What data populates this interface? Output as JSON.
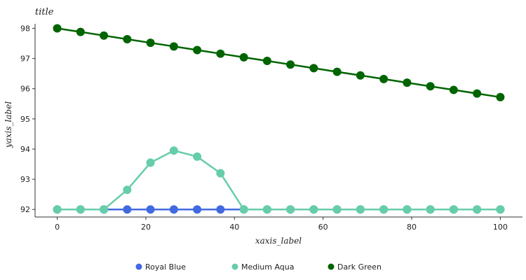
{
  "chart_data": {
    "type": "line",
    "title": "title",
    "xlabel": "xaxis_label",
    "ylabel": "yaxis_label",
    "xlim": [
      -5,
      105
    ],
    "ylim": [
      91.75,
      98.15
    ],
    "x_ticks": [
      0,
      20,
      40,
      60,
      80,
      100
    ],
    "y_ticks": [
      92,
      93,
      94,
      95,
      96,
      97,
      98
    ],
    "legend_position": "bottom",
    "grid": false,
    "legend": [
      {
        "name": "Royal Blue",
        "color": "#4169e1"
      },
      {
        "name": "Medium Aqua",
        "color": "#66cdaa"
      },
      {
        "name": "Dark Green",
        "color": "#006400"
      }
    ],
    "series": [
      {
        "name": "Royal Blue",
        "color": "#4169e1",
        "x": [
          0,
          5.26,
          10.53,
          15.79,
          21.05,
          26.32,
          31.58,
          36.84,
          42.11,
          47.37,
          52.63,
          57.89,
          63.16,
          68.42,
          73.68,
          78.95,
          84.21,
          89.47,
          94.74,
          100
        ],
        "y": [
          92,
          92,
          92,
          92,
          92,
          92,
          92,
          92,
          92,
          92,
          92,
          92,
          92,
          92,
          92,
          92,
          92,
          92,
          92,
          92
        ]
      },
      {
        "name": "Medium Aqua",
        "color": "#66cdaa",
        "x": [
          0,
          5.26,
          10.53,
          15.79,
          21.05,
          26.32,
          31.58,
          36.84,
          42.11,
          47.37,
          52.63,
          57.89,
          63.16,
          68.42,
          73.68,
          78.95,
          84.21,
          89.47,
          94.74,
          100
        ],
        "y": [
          92,
          92,
          92,
          92.65,
          93.55,
          93.95,
          93.75,
          93.2,
          92,
          92,
          92,
          92,
          92,
          92,
          92,
          92,
          92,
          92,
          92,
          92
        ]
      },
      {
        "name": "Dark Green",
        "color": "#006400",
        "x": [
          0,
          5.26,
          10.53,
          15.79,
          21.05,
          26.32,
          31.58,
          36.84,
          42.11,
          47.37,
          52.63,
          57.89,
          63.16,
          68.42,
          73.68,
          78.95,
          84.21,
          89.47,
          94.74,
          100
        ],
        "y": [
          98,
          97.88,
          97.76,
          97.64,
          97.52,
          97.4,
          97.28,
          97.16,
          97.04,
          96.92,
          96.8,
          96.68,
          96.56,
          96.44,
          96.32,
          96.2,
          96.08,
          95.96,
          95.84,
          95.72
        ]
      }
    ]
  }
}
